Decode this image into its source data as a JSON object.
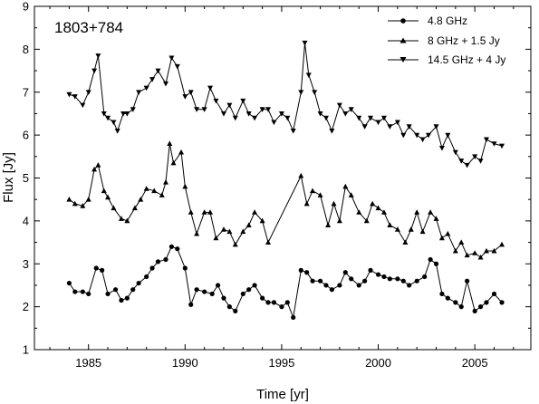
{
  "chart_data": {
    "type": "line",
    "title": "1803+784",
    "xlabel": "Time [yr]",
    "ylabel": "Flux [Jy]",
    "xlim": [
      1982.2,
      2007.9
    ],
    "ylim": [
      1,
      9
    ],
    "xticks": [
      1985,
      1990,
      1995,
      2000,
      2005
    ],
    "xtick_labels": [
      "1985",
      "1990",
      "1995",
      "2000",
      "2005"
    ],
    "yticks": [
      1,
      2,
      3,
      4,
      5,
      6,
      7,
      8,
      9
    ],
    "ytick_labels": [
      "1",
      "2",
      "3",
      "4",
      "5",
      "6",
      "7",
      "8",
      "9"
    ],
    "grid": false,
    "legend_position": "top-right",
    "series": [
      {
        "name": "4.8 GHz",
        "marker": "circle",
        "x": [
          1984.0,
          1984.3,
          1984.7,
          1985.0,
          1985.4,
          1985.7,
          1986.0,
          1986.4,
          1986.7,
          1987.0,
          1987.3,
          1987.6,
          1988.0,
          1988.3,
          1988.6,
          1989.0,
          1989.3,
          1989.6,
          1990.0,
          1990.3,
          1990.6,
          1991.0,
          1991.4,
          1991.7,
          1992.0,
          1992.3,
          1992.6,
          1993.0,
          1993.3,
          1993.6,
          1994.0,
          1994.3,
          1994.6,
          1995.0,
          1995.3,
          1995.6,
          1996.0,
          1996.3,
          1996.6,
          1997.0,
          1997.3,
          1997.6,
          1998.0,
          1998.3,
          1998.6,
          1999.0,
          1999.3,
          1999.6,
          2000.0,
          2000.3,
          2000.6,
          2001.0,
          2001.3,
          2001.6,
          2002.0,
          2002.4,
          2002.7,
          2003.0,
          2003.3,
          2003.6,
          2004.0,
          2004.3,
          2004.6,
          2005.0,
          2005.3,
          2005.6,
          2006.0,
          2006.4
        ],
        "values": [
          2.55,
          2.35,
          2.35,
          2.3,
          2.9,
          2.85,
          2.3,
          2.4,
          2.15,
          2.2,
          2.4,
          2.55,
          2.7,
          2.9,
          3.05,
          3.1,
          3.4,
          3.35,
          2.9,
          2.05,
          2.4,
          2.35,
          2.3,
          2.5,
          2.2,
          2.0,
          1.9,
          2.3,
          2.4,
          2.5,
          2.2,
          2.1,
          2.1,
          2.0,
          2.1,
          1.75,
          2.85,
          2.8,
          2.6,
          2.6,
          2.5,
          2.4,
          2.5,
          2.8,
          2.65,
          2.5,
          2.6,
          2.85,
          2.75,
          2.7,
          2.65,
          2.65,
          2.6,
          2.5,
          2.6,
          2.7,
          3.1,
          3.0,
          2.3,
          2.2,
          2.1,
          2.0,
          2.6,
          1.9,
          2.0,
          2.1,
          2.3,
          2.1
        ]
      },
      {
        "name": "8 GHz + 1.5 Jy",
        "marker": "triangle-up",
        "x": [
          1984.0,
          1984.3,
          1984.7,
          1985.0,
          1985.3,
          1985.5,
          1985.8,
          1986.0,
          1986.3,
          1986.7,
          1987.0,
          1987.4,
          1987.7,
          1988.0,
          1988.4,
          1988.8,
          1989.0,
          1989.2,
          1989.4,
          1989.8,
          1990.0,
          1990.3,
          1990.6,
          1991.0,
          1991.3,
          1991.6,
          1992.0,
          1992.3,
          1992.6,
          1993.0,
          1993.3,
          1993.6,
          1994.0,
          1994.3,
          1996.0,
          1996.3,
          1996.6,
          1997.0,
          1997.4,
          1997.7,
          1998.0,
          1998.3,
          1998.6,
          1999.0,
          1999.4,
          1999.7,
          2000.0,
          2000.3,
          2000.6,
          2001.0,
          2001.4,
          2001.7,
          2002.0,
          2002.3,
          2002.7,
          2003.0,
          2003.3,
          2003.6,
          2004.0,
          2004.3,
          2004.6,
          2005.0,
          2005.3,
          2005.6,
          2006.0,
          2006.4
        ],
        "values": [
          4.5,
          4.4,
          4.35,
          4.5,
          5.2,
          5.3,
          4.7,
          4.55,
          4.3,
          4.05,
          4.0,
          4.3,
          4.5,
          4.75,
          4.7,
          4.6,
          4.9,
          5.8,
          5.35,
          5.6,
          4.8,
          4.2,
          3.7,
          4.2,
          4.2,
          3.6,
          3.8,
          3.75,
          3.45,
          3.75,
          3.9,
          4.2,
          4.0,
          3.5,
          5.05,
          4.4,
          4.7,
          4.6,
          3.9,
          4.4,
          4.0,
          4.8,
          4.6,
          4.2,
          4.0,
          4.4,
          4.3,
          4.2,
          3.9,
          3.8,
          3.5,
          3.8,
          4.2,
          3.75,
          4.2,
          4.05,
          3.6,
          3.7,
          3.3,
          3.5,
          3.2,
          3.25,
          3.15,
          3.3,
          3.3,
          3.45
        ]
      },
      {
        "name": "14.5 GHz + 4 Jy",
        "marker": "triangle-down",
        "x": [
          1984.0,
          1984.3,
          1984.7,
          1985.0,
          1985.3,
          1985.5,
          1985.8,
          1986.0,
          1986.3,
          1986.5,
          1986.8,
          1987.0,
          1987.3,
          1987.6,
          1988.0,
          1988.3,
          1988.6,
          1989.0,
          1989.3,
          1989.6,
          1990.0,
          1990.3,
          1990.6,
          1991.0,
          1991.3,
          1991.6,
          1992.0,
          1992.3,
          1992.6,
          1993.0,
          1993.3,
          1993.6,
          1994.0,
          1994.3,
          1994.6,
          1995.0,
          1995.3,
          1995.6,
          1996.0,
          1996.2,
          1996.4,
          1996.7,
          1997.0,
          1997.3,
          1997.6,
          1998.0,
          1998.3,
          1998.6,
          1999.0,
          1999.3,
          1999.6,
          2000.0,
          2000.3,
          2000.6,
          2001.0,
          2001.3,
          2001.6,
          2002.0,
          2002.3,
          2002.6,
          2003.0,
          2003.3,
          2003.6,
          2004.0,
          2004.3,
          2004.6,
          2005.0,
          2005.3,
          2005.6,
          2006.0,
          2006.4
        ],
        "values": [
          6.95,
          6.9,
          6.7,
          7.0,
          7.5,
          7.85,
          6.5,
          6.4,
          6.3,
          6.1,
          6.5,
          6.5,
          6.6,
          7.0,
          7.1,
          7.3,
          7.5,
          7.2,
          7.8,
          7.6,
          6.9,
          7.0,
          6.6,
          6.6,
          7.1,
          6.8,
          6.5,
          6.7,
          6.4,
          6.8,
          6.5,
          6.4,
          6.6,
          6.6,
          6.3,
          6.5,
          6.4,
          6.1,
          7.0,
          8.15,
          7.4,
          7.0,
          6.5,
          6.4,
          6.1,
          6.7,
          6.5,
          6.6,
          6.4,
          6.2,
          6.4,
          6.3,
          6.4,
          6.2,
          6.3,
          6.0,
          6.2,
          6.0,
          5.9,
          6.0,
          6.2,
          5.7,
          6.0,
          5.6,
          5.4,
          5.3,
          5.5,
          5.4,
          5.9,
          5.8,
          5.75
        ]
      }
    ]
  }
}
